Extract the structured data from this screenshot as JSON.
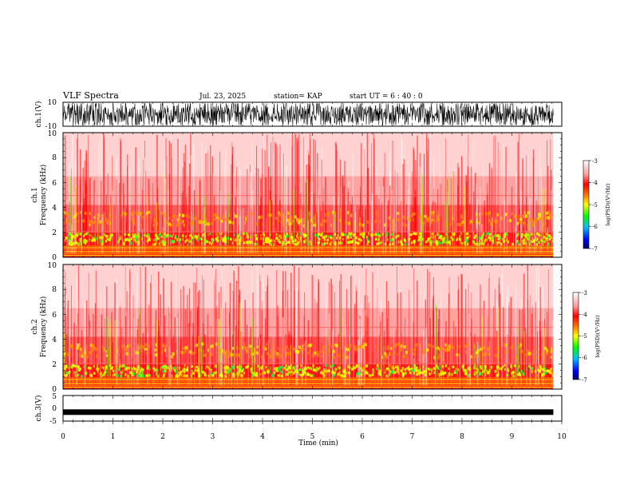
{
  "header": {
    "title": "VLF Spectra",
    "date": "Jul. 23, 2025",
    "station": "station= KAP",
    "start": "start  UT =   6  : 40 : 0"
  },
  "chart_data": [
    {
      "type": "line",
      "id": "ch1-waveform",
      "ylabel": "ch.1(V)",
      "ylim": [
        -10,
        10
      ],
      "yticks": [
        "10",
        "-10"
      ],
      "xlim": [
        0,
        9.83
      ]
    },
    {
      "type": "heatmap",
      "id": "ch1-spectrogram",
      "ylabel_top": "ch.1",
      "ylabel": "Frequency  (kHz)",
      "ylim": [
        0,
        10
      ],
      "yticks": [
        "0",
        "2",
        "4",
        "6",
        "8",
        "10"
      ],
      "xlim": [
        0,
        9.83
      ],
      "colorbar": {
        "label": "log(PSD)(V²/Hz)",
        "ticks": [
          "-3",
          "-4",
          "-5",
          "-6",
          "-7"
        ],
        "range": [
          -7,
          -3
        ]
      }
    },
    {
      "type": "heatmap",
      "id": "ch2-spectrogram",
      "ylabel_top": "ch.2",
      "ylabel": "Frequency  (kHz)",
      "ylim": [
        0,
        10
      ],
      "yticks": [
        "0",
        "2",
        "4",
        "6",
        "8",
        "10"
      ],
      "xlim": [
        0,
        9.83
      ],
      "colorbar": {
        "label": "log(PSD)(V²/Hz)",
        "ticks": [
          "-3",
          "-4",
          "-5",
          "-6",
          "-7"
        ],
        "range": [
          -7,
          -3
        ]
      }
    },
    {
      "type": "line",
      "id": "ch3-waveform",
      "ylabel": "ch.3(V)",
      "ylim": [
        -5,
        5
      ],
      "yticks": [
        "5",
        "0",
        "-5"
      ],
      "level": -1.5,
      "xlim": [
        0,
        9.83
      ]
    }
  ],
  "xaxis": {
    "label": "Time  (min)",
    "range": [
      0,
      10
    ],
    "ticks": [
      "0",
      "1",
      "2",
      "3",
      "4",
      "5",
      "6",
      "7",
      "8",
      "9",
      "10"
    ]
  },
  "colors": {
    "high": "#ff0000",
    "mid": "#ffff00",
    "low": "#00c000",
    "background": "#ffffff",
    "trace": "#000000"
  }
}
